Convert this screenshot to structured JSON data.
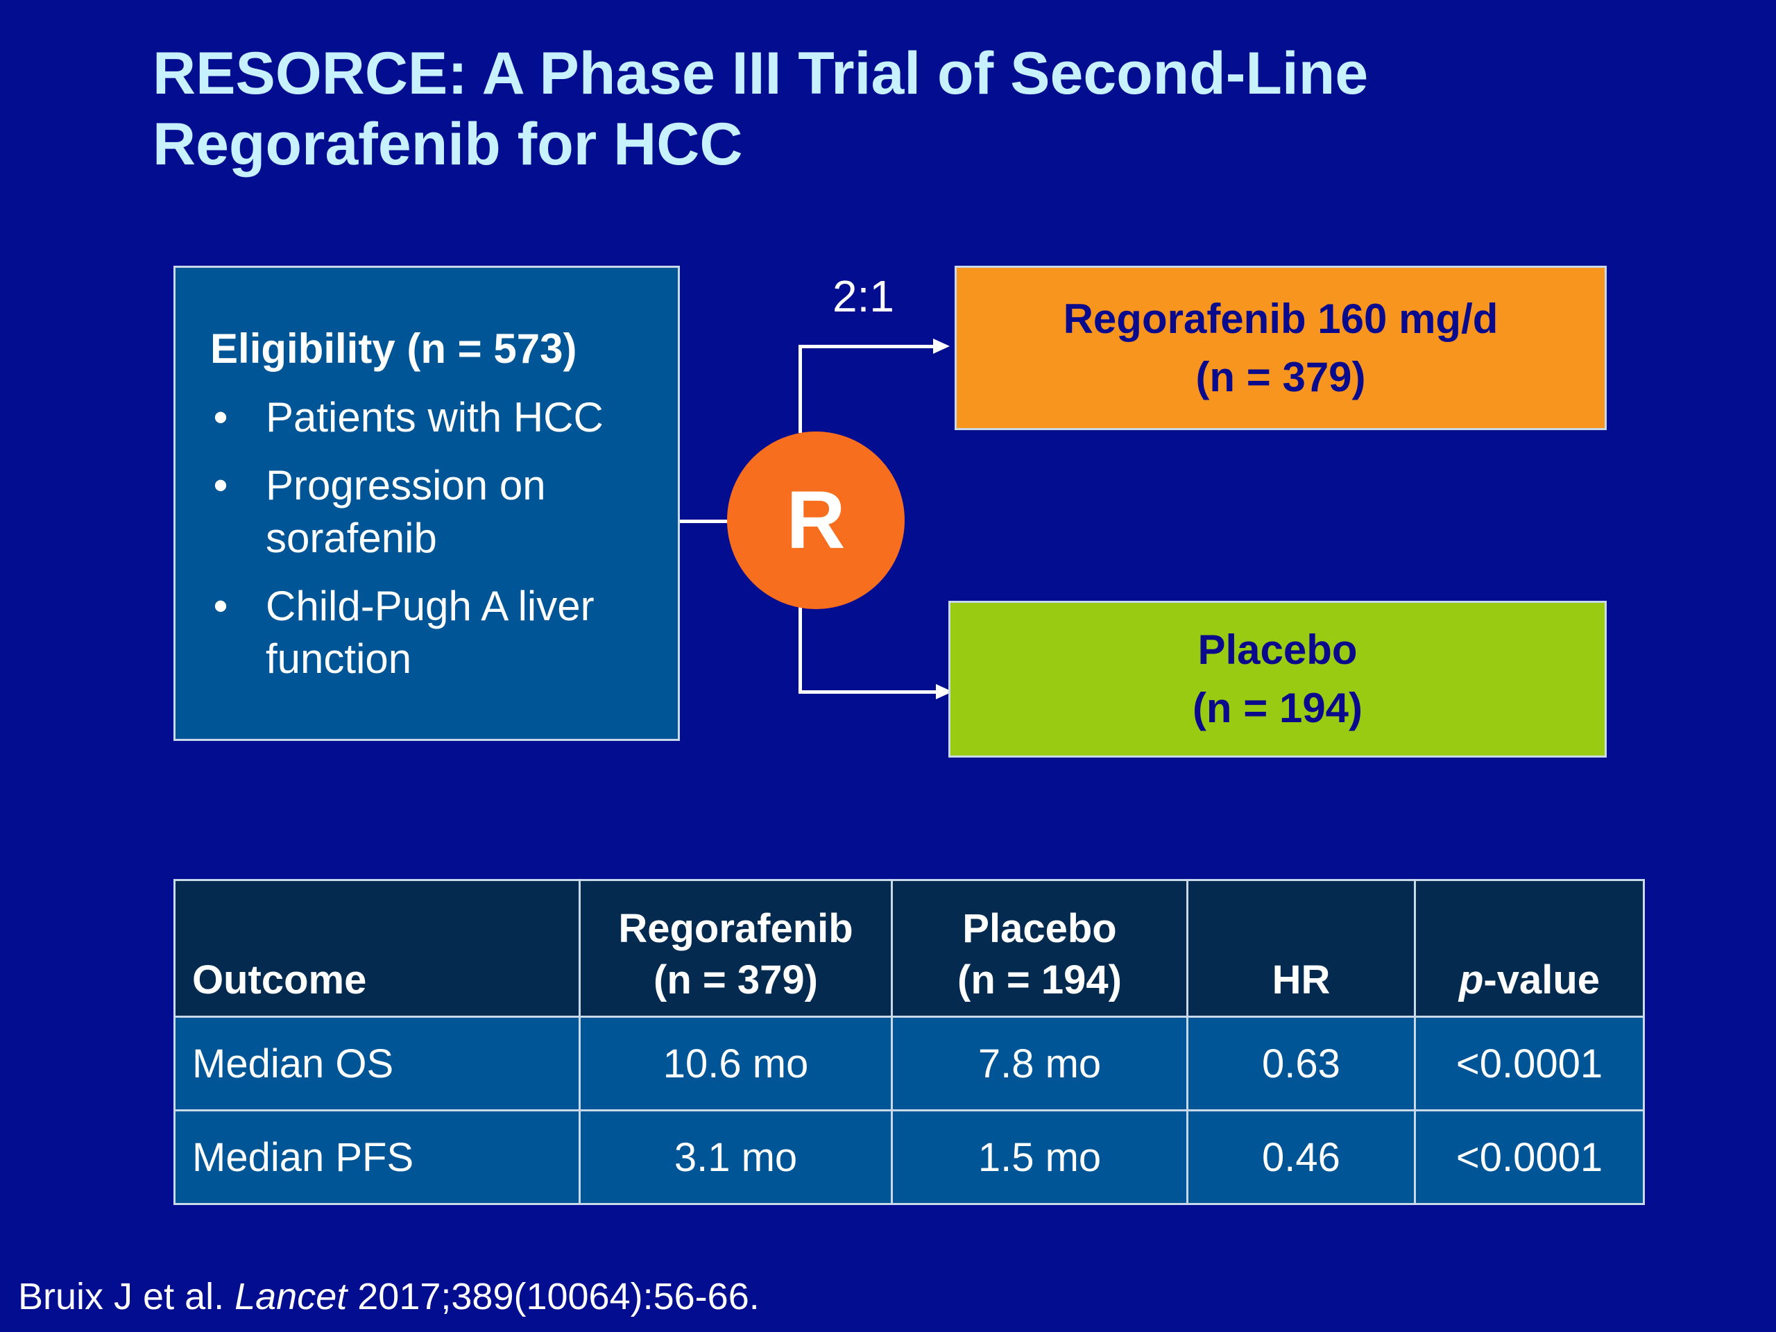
{
  "title": {
    "line1": "RESORCE: A Phase III Trial of Second-Line",
    "line2": "Regorafenib for HCC"
  },
  "eligibility": {
    "heading": "Eligibility (n = 573)",
    "bullet_char": "•",
    "items": [
      "Patients with HCC",
      "Progression on sorafenib",
      "Child-Pugh A liver function"
    ]
  },
  "randomization": {
    "symbol": "R",
    "ratio": "2:1"
  },
  "arms": {
    "regorafenib": {
      "line1": "Regorafenib 160 mg/d",
      "line2": "(n = 379)"
    },
    "placebo": {
      "line1": "Placebo",
      "line2": "(n = 194)"
    }
  },
  "table": {
    "headers": {
      "outcome": "Outcome",
      "rego_line1": "Regorafenib",
      "rego_line2": "(n = 379)",
      "plac_line1": "Placebo",
      "plac_line2": "(n = 194)",
      "hr": "HR",
      "p_italic": "p",
      "p_rest": "-value"
    },
    "rows": [
      {
        "outcome": "Median OS",
        "regorafenib": "10.6 mo",
        "placebo": "7.8 mo",
        "hr": "0.63",
        "p": "<0.0001"
      },
      {
        "outcome": "Median PFS",
        "regorafenib": "3.1 mo",
        "placebo": "1.5 mo",
        "hr": "0.46",
        "p": "<0.0001"
      }
    ]
  },
  "citation": {
    "authors": "Bruix J et al. ",
    "journal": "Lancet",
    "details": " 2017;389(10064):56-66."
  },
  "colors": {
    "background": "#030d8f",
    "title": "#c8f1ff",
    "eligibility_box": "#005596",
    "randomization_circle": "#f86e1f",
    "regorafenib_arm": "#f7951e",
    "placebo_arm": "#98cb12",
    "table_header": "#042a4f",
    "table_body": "#005596"
  }
}
